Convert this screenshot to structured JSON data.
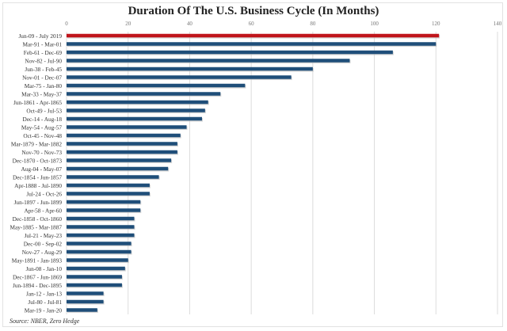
{
  "chart_data": {
    "type": "bar",
    "orientation": "horizontal",
    "title": "Duration Of  The U.S. Business Cycle (In Months)",
    "source": "Source: NBER, Zero Hedge",
    "xlim": [
      0,
      140
    ],
    "xticks": [
      0,
      20,
      40,
      60,
      80,
      100,
      120,
      140
    ],
    "grid": true,
    "highlight_color": "#c0141b",
    "bar_color": "#1f4e79",
    "categories": [
      "Jun-09 - July 2019",
      "Mar-91 - Mar-01",
      "Feb-61 - Dec-69",
      "Nov-82 - Jul-90",
      "Jun-38 - Feb-45",
      "Nov-01 - Dec-07",
      "Mar-75 - Jan-80",
      "Mar-33 - May-37",
      "Jun-1861 - Apr-1865",
      "Oct-49 - Jul-53",
      "Dec-14 - Aug-18",
      "May-54 - Aug-57",
      "Oct-45 - Nov-48",
      "Mar-1879 - Mar-1882",
      "Nov-70 - Nov-73",
      "Dec-1870 - Oct-1873",
      "Aug-04 - May-07",
      "Dec-1854 - Jun-1857",
      "Apr-1888 - Jul-1890",
      "Jul-24 - Oct-26",
      "Jun-1897 - Jun-1899",
      "Apr-58 - Apr-60",
      "Dec-1858 - Oct-1860",
      "May-1885 - Mar-1887",
      "Jul-21 - May-23",
      "Dec-00 - Sep-02",
      "Nov-27 - Aug-29",
      "May-1891 - Jan-1893",
      "Jun-08 - Jan-10",
      "Dec-1867 - Jun-1869",
      "Jun-1894 - Dec-1895",
      "Jan-12 - Jan-13",
      "Jul-80 - Jul-81",
      "Mar-19 - Jan-20"
    ],
    "values": [
      121,
      120,
      106,
      92,
      80,
      73,
      58,
      50,
      46,
      45,
      44,
      39,
      37,
      36,
      36,
      34,
      33,
      30,
      27,
      27,
      24,
      24,
      22,
      22,
      22,
      21,
      21,
      20,
      19,
      18,
      18,
      12,
      12,
      10
    ]
  }
}
